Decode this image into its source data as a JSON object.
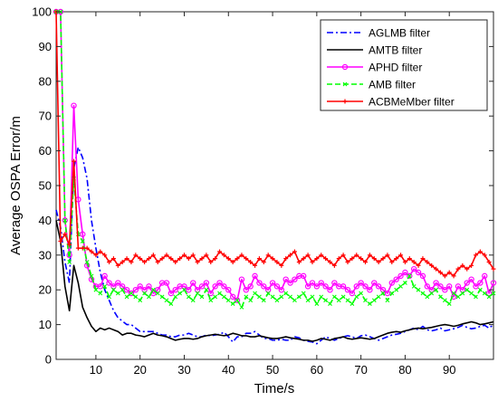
{
  "chart_data": {
    "type": "line",
    "xlabel": "Time/s",
    "ylabel": "Average OSPA Error/m",
    "xlim": [
      1,
      100
    ],
    "ylim": [
      0,
      100
    ],
    "xticks": [
      "10",
      "20",
      "30",
      "40",
      "50",
      "60",
      "70",
      "80",
      "90"
    ],
    "yticks": [
      "0",
      "10",
      "20",
      "30",
      "40",
      "50",
      "60",
      "70",
      "80",
      "90",
      "100"
    ],
    "grid": false,
    "legend_position": "top-right",
    "x": [
      1,
      2,
      3,
      4,
      5,
      6,
      7,
      8,
      9,
      10,
      11,
      12,
      13,
      14,
      15,
      16,
      17,
      18,
      19,
      20,
      21,
      22,
      23,
      24,
      25,
      26,
      27,
      28,
      29,
      30,
      31,
      32,
      33,
      34,
      35,
      36,
      37,
      38,
      39,
      40,
      41,
      42,
      43,
      44,
      45,
      46,
      47,
      48,
      49,
      50,
      51,
      52,
      53,
      54,
      55,
      56,
      57,
      58,
      59,
      60,
      61,
      62,
      63,
      64,
      65,
      66,
      67,
      68,
      69,
      70,
      71,
      72,
      73,
      74,
      75,
      76,
      77,
      78,
      79,
      80,
      81,
      82,
      83,
      84,
      85,
      86,
      87,
      88,
      89,
      90,
      91,
      92,
      93,
      94,
      95,
      96,
      97,
      98,
      99,
      100
    ],
    "series": [
      {
        "name": "AGLMB filter",
        "color": "#0000ff",
        "dash": "dashdot",
        "marker": "none",
        "values": [
          43,
          38,
          28,
          22,
          55,
          61,
          58,
          52,
          40,
          32,
          25,
          20,
          17,
          14,
          12,
          11,
          10,
          10,
          9,
          8,
          8,
          8,
          8,
          7.5,
          7,
          7,
          6.5,
          6.5,
          7,
          7,
          7.5,
          7,
          6.5,
          6.5,
          7,
          6.8,
          7,
          7.2,
          7.8,
          6.5,
          5,
          6.5,
          6.5,
          7.5,
          7.5,
          8,
          7,
          6,
          6,
          5.5,
          5.5,
          5.8,
          5.5,
          5.5,
          6.5,
          6.2,
          5.5,
          5.2,
          5,
          4.5,
          5.5,
          6.5,
          6,
          5.5,
          6,
          6.5,
          6.8,
          6.5,
          6,
          6.8,
          7,
          6.5,
          6,
          5.5,
          6,
          6.5,
          7,
          7.2,
          7.5,
          8,
          8.5,
          9,
          8.5,
          9.5,
          8.5,
          8.2,
          8.5,
          9,
          8.2,
          8.5,
          8.8,
          9.2,
          9.8,
          9.2,
          8.8,
          9,
          9.5,
          9.8,
          9,
          10
        ]
      },
      {
        "name": "AMTB filter",
        "color": "#000000",
        "dash": "solid",
        "marker": "none",
        "values": [
          40,
          34,
          21,
          14,
          27,
          22,
          15,
          12,
          9.5,
          8,
          9,
          8.5,
          9,
          8.5,
          8,
          7,
          7.5,
          7.5,
          7,
          6.8,
          6.5,
          7,
          7.5,
          7,
          6.8,
          6.5,
          6,
          5.5,
          5.8,
          6,
          6,
          5.8,
          6,
          6.5,
          6.8,
          7,
          7.2,
          7,
          6.8,
          7,
          7.5,
          7.2,
          6.8,
          6.8,
          6.5,
          6.5,
          6.8,
          6.5,
          6.2,
          6,
          6,
          6.2,
          6.5,
          6.2,
          6,
          5.8,
          5.5,
          5.5,
          5.2,
          5.5,
          6,
          5.8,
          5.5,
          6,
          6.2,
          6.5,
          6,
          5.8,
          6,
          6.2,
          6,
          5.8,
          6,
          6.5,
          7,
          7.5,
          7.8,
          8,
          7.8,
          8.2,
          8.5,
          8.8,
          9,
          8.8,
          9,
          9.2,
          9.5,
          9.8,
          10,
          9.8,
          9.5,
          9.8,
          10.2,
          10.5,
          10.8,
          10.5,
          10,
          10.2,
          10.5,
          10.8
        ]
      },
      {
        "name": "APHD filter",
        "color": "#ff00ff",
        "dash": "solid",
        "marker": "circle",
        "values": [
          100,
          100,
          40,
          30,
          73,
          46,
          36,
          27,
          23,
          21,
          21,
          24,
          22,
          21,
          22,
          21,
          20,
          19,
          20,
          21,
          20,
          21,
          19,
          20,
          22,
          22,
          19,
          20,
          21,
          21,
          20,
          22,
          20,
          21,
          22,
          19,
          21,
          22,
          21,
          20,
          18,
          17,
          23,
          20,
          21,
          24,
          22,
          21,
          20,
          22,
          21,
          20,
          23,
          22,
          23,
          24,
          24,
          21,
          22,
          21,
          22,
          21,
          20,
          22,
          21,
          21,
          20,
          19,
          21,
          22,
          21,
          20,
          22,
          21,
          20,
          19,
          22,
          23,
          24,
          25,
          24,
          26,
          25,
          24,
          21,
          20,
          22,
          21,
          20,
          21,
          18,
          21,
          20,
          22,
          23,
          21,
          22,
          24,
          19,
          22
        ]
      },
      {
        "name": "AMB filter",
        "color": "#00ff00",
        "dash": "dashed",
        "marker": "x",
        "values": [
          100,
          100,
          40,
          28,
          52,
          36,
          34,
          28,
          24,
          20,
          19,
          21,
          18,
          20,
          19,
          20,
          18,
          19,
          18,
          17,
          19,
          18,
          20,
          19,
          18,
          17,
          16,
          18,
          19,
          20,
          18,
          17,
          19,
          18,
          20,
          17,
          18,
          19,
          18,
          17,
          16,
          17,
          15,
          18,
          17,
          19,
          18,
          17,
          19,
          18,
          17,
          18,
          19,
          18,
          17,
          18,
          19,
          17,
          18,
          16,
          18,
          17,
          16,
          18,
          17,
          18,
          17,
          16,
          18,
          19,
          17,
          16,
          17,
          18,
          19,
          17,
          19,
          20,
          21,
          22,
          24,
          21,
          20,
          19,
          18,
          19,
          20,
          18,
          17,
          16,
          19,
          18,
          19,
          20,
          19,
          18,
          20,
          19,
          18,
          19
        ]
      },
      {
        "name": "ACBMeMber filter",
        "color": "#ff0000",
        "dash": "solid",
        "marker": "plus",
        "values": [
          100,
          34,
          36,
          33,
          57,
          32,
          32,
          32,
          31,
          30,
          31,
          30,
          28,
          29,
          27,
          28,
          29,
          28,
          30,
          29,
          28,
          29,
          30,
          28,
          29,
          30,
          29,
          28,
          29,
          30,
          29,
          30,
          28,
          29,
          30,
          28,
          29,
          31,
          30,
          29,
          28,
          29,
          30,
          29,
          28,
          27,
          29,
          28,
          30,
          29,
          28,
          27,
          29,
          30,
          31,
          28,
          29,
          30,
          28,
          29,
          30,
          29,
          28,
          27,
          29,
          30,
          28,
          29,
          30,
          29,
          28,
          30,
          29,
          28,
          29,
          30,
          28,
          29,
          30,
          28,
          29,
          28,
          27,
          29,
          28,
          27,
          26,
          25,
          24,
          25,
          24,
          26,
          27,
          26,
          27,
          30,
          31,
          30,
          28,
          26
        ]
      }
    ]
  }
}
